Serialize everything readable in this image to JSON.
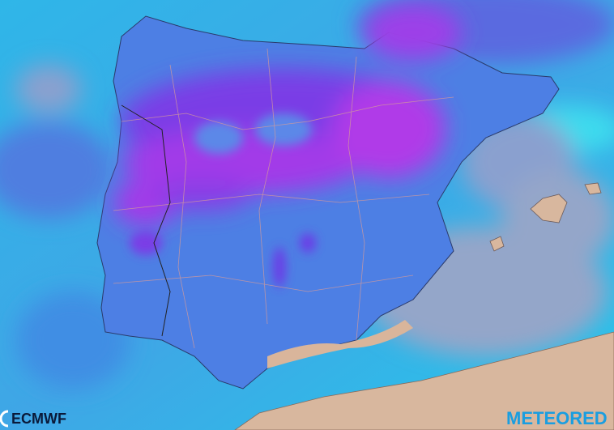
{
  "logos": {
    "left": "ECMWF",
    "right": "METEORED"
  }
}
